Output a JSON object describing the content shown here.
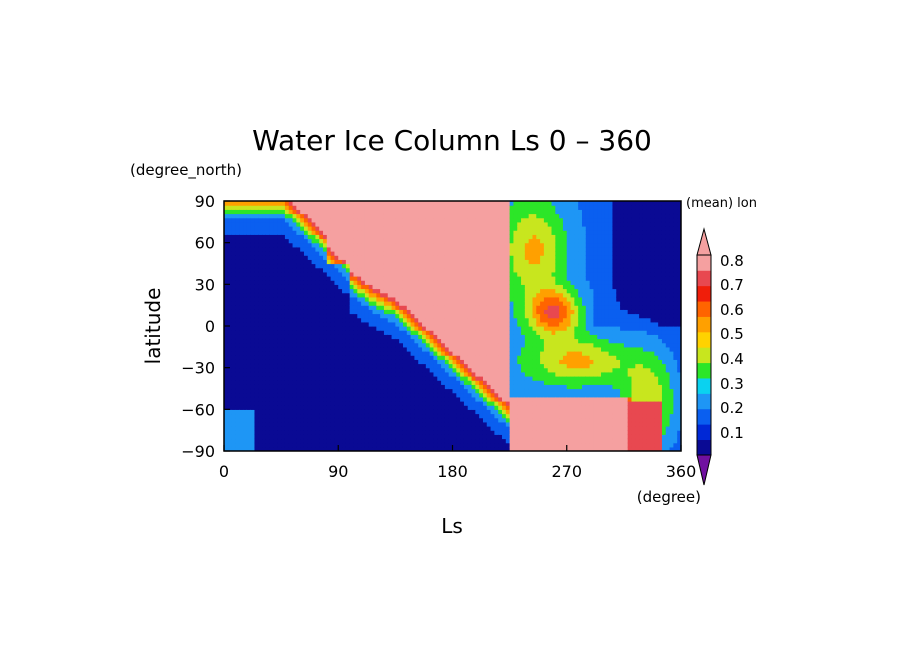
{
  "chart_data": {
    "type": "heatmap",
    "title": "Water Ice Column Ls 0 – 360",
    "xlabel": "Ls",
    "ylabel": "latitude",
    "x_unit": "(degree)",
    "y_unit": "(degree_north)",
    "colorbar_label": "(mean) lon",
    "xlim": [
      0,
      360
    ],
    "ylim": [
      -90,
      90
    ],
    "x_ticks": [
      "0",
      "90",
      "180",
      "270",
      "360"
    ],
    "y_ticks": [
      "90",
      "60",
      "30",
      "0",
      "−30",
      "−60",
      "−90"
    ],
    "levels": [
      "0.1",
      "0.2",
      "0.3",
      "0.4",
      "0.5",
      "0.6",
      "0.7",
      "0.8"
    ],
    "colors": [
      "#0a0a94",
      "#0028d6",
      "#0a5ff0",
      "#1e96f5",
      "#0ad2f0",
      "#2ce628",
      "#c8e61e",
      "#ffd200",
      "#ffa000",
      "#ff6400",
      "#f01e0a",
      "#e84850",
      "#f5a0a0"
    ],
    "under_color": "#7010a0",
    "grid": false,
    "colorbar_placement": "right"
  }
}
